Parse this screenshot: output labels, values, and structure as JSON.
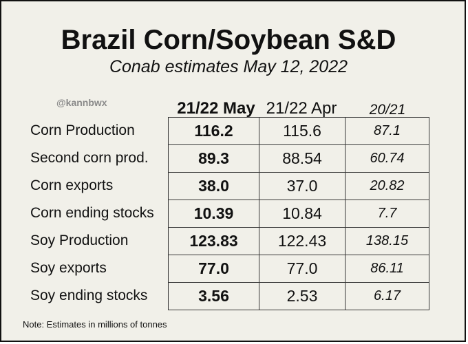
{
  "title": "Brazil Corn/Soybean S&D",
  "subtitle": "Conab estimates May 12, 2022",
  "watermark": "@kannbwx",
  "note": "Note: Estimates in millions of tonnes",
  "chart_data": {
    "type": "table",
    "title": "Brazil Corn/Soybean S&D",
    "subtitle": "Conab estimates May 12, 2022",
    "columns": [
      "21/22 May",
      "21/22 Apr",
      "20/21"
    ],
    "rows": [
      {
        "label": "Corn Production",
        "values": [
          "116.2",
          "115.6",
          "87.1"
        ]
      },
      {
        "label": "Second corn prod.",
        "values": [
          "89.3",
          "88.54",
          "60.74"
        ]
      },
      {
        "label": "Corn exports",
        "values": [
          "38.0",
          "37.0",
          "20.82"
        ]
      },
      {
        "label": "Corn ending stocks",
        "values": [
          "10.39",
          "10.84",
          "7.7"
        ]
      },
      {
        "label": "Soy Production",
        "values": [
          "123.83",
          "122.43",
          "138.15"
        ]
      },
      {
        "label": "Soy exports",
        "values": [
          "77.0",
          "77.0",
          "86.11"
        ]
      },
      {
        "label": "Soy ending stocks",
        "values": [
          "3.56",
          "2.53",
          "6.17"
        ]
      }
    ],
    "units": "millions of tonnes"
  }
}
